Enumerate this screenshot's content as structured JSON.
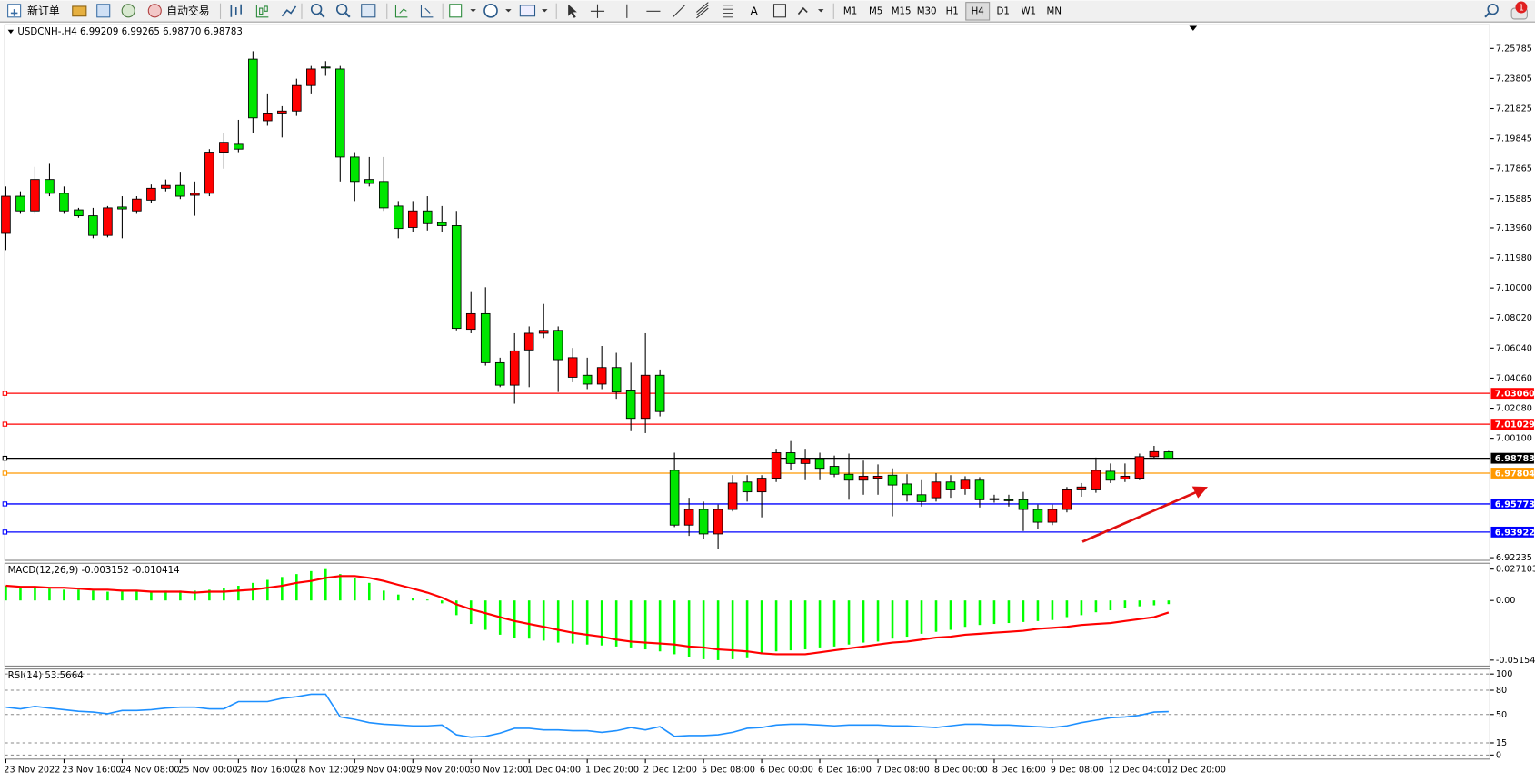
{
  "toolbar": {
    "buttons": [
      "新订单",
      "自动交易"
    ],
    "timeframes": [
      "M1",
      "M5",
      "M15",
      "M30",
      "H1",
      "H4",
      "D1",
      "W1",
      "MN"
    ],
    "text_tool": "A",
    "badge": "1"
  },
  "chart_data": [
    {
      "type": "candlestick",
      "title": "USDCNH-,H4  6.99209 6.99265 6.98770 6.98783",
      "categories": [
        "23 Nov 2022",
        null,
        null,
        null,
        "23 Nov 16:00",
        null,
        null,
        null,
        "24 Nov 08:00",
        null,
        null,
        null,
        "25 Nov 00:00",
        null,
        null,
        null,
        "25 Nov 16:00",
        null,
        null,
        null,
        "28 Nov 12:00",
        null,
        null,
        null,
        "29 Nov 04:00",
        null,
        null,
        null,
        "29 Nov 20:00",
        null,
        null,
        null,
        "30 Nov 12:00",
        null,
        null,
        null,
        "1 Dec 04:00",
        null,
        null,
        null,
        "1 Dec 20:00",
        null,
        null,
        null,
        "2 Dec 12:00",
        null,
        null,
        null,
        "5 Dec 08:00",
        null,
        null,
        null,
        "6 Dec 00:00",
        null,
        null,
        null,
        "6 Dec 16:00",
        null,
        null,
        null,
        "7 Dec 08:00",
        null,
        null,
        null,
        "8 Dec 00:00",
        null,
        null,
        null,
        "8 Dec 16:00",
        null,
        null,
        null,
        "9 Dec 08:00",
        null,
        null,
        null,
        "12 Dec 04:00",
        null,
        null,
        null,
        "12 Dec 20:00"
      ],
      "open": [
        7.136,
        7.1605,
        7.1508,
        7.1715,
        7.1624,
        7.1515,
        7.1476,
        7.1347,
        7.1534,
        7.1508,
        7.1579,
        7.1657,
        7.1676,
        7.1611,
        7.1624,
        7.1895,
        7.1947,
        7.2508,
        7.2102,
        7.2153,
        7.2166,
        7.2334,
        7.2456,
        7.2443,
        7.1863,
        7.1715,
        7.1702,
        7.154,
        7.1399,
        7.1508,
        7.1431,
        7.1411,
        7.0728,
        7.0831,
        7.0508,
        7.036,
        7.0592,
        7.0702,
        7.0721,
        7.0412,
        7.0425,
        7.0367,
        7.0476,
        7.0328,
        7.0141,
        7.0425,
        6.9799,
        6.9438,
        6.9541,
        6.938,
        6.9541,
        6.9722,
        6.9657,
        6.9747,
        6.9915,
        6.9844,
        6.9876,
        6.9825,
        6.9773,
        6.9734,
        6.9747,
        6.9767,
        6.9709,
        6.9638,
        6.9618,
        6.9722,
        6.9676,
        6.9734,
        6.9612,
        6.9605,
        6.9605,
        6.9541,
        6.9457,
        6.9541,
        6.967,
        6.967,
        6.9793,
        6.9741,
        6.9747,
        6.9889,
        6.99209
      ],
      "high": [
        7.1669,
        7.1637,
        7.1798,
        7.1818,
        7.1669,
        7.1528,
        7.1528,
        7.154,
        7.1605,
        7.1605,
        7.1682,
        7.1715,
        7.1766,
        7.1702,
        7.1915,
        7.2024,
        7.2108,
        7.256,
        7.2282,
        7.2198,
        7.2379,
        7.2463,
        7.2495,
        7.2463,
        7.1895,
        7.1863,
        7.1863,
        7.1573,
        7.1573,
        7.1605,
        7.154,
        7.1508,
        7.0979,
        7.1005,
        7.0541,
        7.0702,
        7.0747,
        7.0895,
        7.0747,
        7.0605,
        7.0541,
        7.0618,
        7.0573,
        7.0508,
        7.0702,
        7.0463,
        6.9915,
        6.9618,
        6.9593,
        6.9573,
        6.9767,
        6.9767,
        6.9767,
        6.9941,
        6.9992,
        6.9941,
        6.9915,
        6.9896,
        6.9909,
        6.9863,
        6.9838,
        6.9812,
        6.9773,
        6.9734,
        6.978,
        6.9767,
        6.976,
        6.9754,
        6.9638,
        6.9638,
        6.9657,
        6.9573,
        6.9573,
        6.9689,
        6.9715,
        6.9883,
        6.9844,
        6.9844,
        6.9909,
        6.996,
        6.99265
      ],
      "low": [
        7.125,
        7.1489,
        7.1489,
        7.1605,
        7.1489,
        7.1463,
        7.1328,
        7.1334,
        7.1328,
        7.1489,
        7.156,
        7.1637,
        7.1586,
        7.1476,
        7.1605,
        7.1786,
        7.1895,
        7.2024,
        7.2069,
        7.1992,
        7.2134,
        7.2282,
        7.2398,
        7.1702,
        7.1573,
        7.1669,
        7.1508,
        7.1328,
        7.1366,
        7.1379,
        7.1366,
        7.0721,
        7.0702,
        7.0489,
        7.0347,
        7.0238,
        7.0347,
        7.067,
        7.0315,
        7.0379,
        7.0334,
        7.0334,
        7.027,
        7.0057,
        7.0044,
        7.0154,
        6.9425,
        6.9367,
        6.9347,
        6.9283,
        6.9528,
        6.9593,
        6.9489,
        6.9722,
        6.9799,
        6.9734,
        6.9734,
        6.9754,
        6.9605,
        6.9638,
        6.9638,
        6.9496,
        6.9593,
        6.956,
        6.9593,
        6.9618,
        6.9638,
        6.9554,
        6.9586,
        6.956,
        6.9399,
        6.9412,
        6.9438,
        6.9522,
        6.9625,
        6.9651,
        6.9715,
        6.9722,
        6.9734,
        6.9876,
        6.9877
      ],
      "close": [
        7.1605,
        7.1508,
        7.1715,
        7.1624,
        7.1508,
        7.1476,
        7.1347,
        7.1528,
        7.1521,
        7.1586,
        7.1657,
        7.1676,
        7.1605,
        7.1624,
        7.1895,
        7.196,
        7.1915,
        7.2121,
        7.2153,
        7.2166,
        7.2334,
        7.2443,
        7.245,
        7.1863,
        7.1702,
        7.1689,
        7.1528,
        7.1392,
        7.1508,
        7.1424,
        7.1411,
        7.0734,
        7.0831,
        7.0508,
        7.036,
        7.0586,
        7.0702,
        7.0721,
        7.0528,
        7.0541,
        7.0367,
        7.0476,
        7.0315,
        7.0141,
        7.0425,
        7.0186,
        6.9438,
        6.9541,
        6.938,
        6.9541,
        6.9715,
        6.9657,
        6.9747,
        6.9915,
        6.9844,
        6.9876,
        6.9812,
        6.9773,
        6.9734,
        6.976,
        6.976,
        6.9702,
        6.9638,
        6.9593,
        6.9722,
        6.967,
        6.9734,
        6.9605,
        6.9605,
        6.9599,
        6.9541,
        6.9457,
        6.9541,
        6.967,
        6.9689,
        6.9799,
        6.9734,
        6.976,
        6.9889,
        6.9922,
        6.98783
      ],
      "up_color": "#ff0000",
      "down_color": "#00e600",
      "ylim": [
        6.9206,
        7.2727
      ],
      "yticks": [
        7.25785,
        7.23805,
        7.21825,
        7.19845,
        7.17865,
        7.15885,
        {
          "value": 7.1396,
          "label": "7.13960"
        },
        {
          "value": 7.1198,
          "label": "7.11980"
        },
        {
          "value": 7.1,
          "label": "7.10000"
        },
        {
          "value": 7.0802,
          "label": "7.08020"
        },
        {
          "value": 7.0604,
          "label": "7.06040"
        },
        {
          "value": 7.0406,
          "label": "7.04060"
        },
        {
          "value": 7.0208,
          "label": "7.02080"
        },
        {
          "value": 7.001,
          "label": "7.00100"
        },
        6.92235
      ],
      "levels": {
        "values": [
          7.0306,
          7.01029,
          6.98783,
          6.97804,
          6.95773,
          6.93922
        ],
        "value_labels": [
          "7.03060",
          "7.01029",
          "6.98783",
          "6.97804",
          "6.95773",
          "6.93922"
        ],
        "colors": [
          "#ff0000",
          "#ff0000",
          "#000000",
          "#ff9900",
          "#0000ff",
          "#0000ff"
        ]
      }
    },
    {
      "type": "macd",
      "title": "MACD(12,26,9) -0.003152 -0.010414",
      "series": [
        {
          "kind": "bar",
          "color": "#00ff00",
          "values": [
            0.0127,
            0.011,
            0.011,
            0.0102,
            0.0093,
            0.0093,
            0.0085,
            0.0076,
            0.0076,
            0.0076,
            0.0076,
            0.0085,
            0.0085,
            0.0085,
            0.0093,
            0.011,
            0.0127,
            0.0152,
            0.0178,
            0.0203,
            0.0228,
            0.0254,
            0.0271,
            0.0228,
            0.0195,
            0.0152,
            0.0085,
            0.0051,
            0.0025,
            0.0008,
            -0.0025,
            -0.0127,
            -0.0203,
            -0.0254,
            -0.0296,
            -0.0321,
            -0.033,
            -0.0347,
            -0.0364,
            -0.0372,
            -0.0381,
            -0.0389,
            -0.0398,
            -0.0406,
            -0.0423,
            -0.044,
            -0.0465,
            -0.0491,
            -0.0508,
            -0.0516,
            -0.0508,
            -0.0499,
            -0.0465,
            -0.044,
            -0.0431,
            -0.0423,
            -0.0406,
            -0.0398,
            -0.0381,
            -0.0364,
            -0.0355,
            -0.033,
            -0.0313,
            -0.0288,
            -0.0271,
            -0.0254,
            -0.0228,
            -0.0212,
            -0.0203,
            -0.0195,
            -0.0186,
            -0.0178,
            -0.0169,
            -0.0144,
            -0.0127,
            -0.0102,
            -0.0085,
            -0.0068,
            -0.0051,
            -0.0042,
            -0.003152
          ]
        },
        {
          "kind": "line",
          "color": "#ff0000",
          "values": [
            0.0127,
            0.0118,
            0.0118,
            0.011,
            0.011,
            0.0102,
            0.0093,
            0.0093,
            0.0085,
            0.0085,
            0.0076,
            0.0076,
            0.0076,
            0.0068,
            0.0076,
            0.0076,
            0.0085,
            0.0093,
            0.011,
            0.0127,
            0.0152,
            0.0169,
            0.0195,
            0.0211,
            0.0211,
            0.0195,
            0.0169,
            0.0135,
            0.0102,
            0.0068,
            0.0025,
            -0.0034,
            -0.0076,
            -0.011,
            -0.0144,
            -0.0178,
            -0.0203,
            -0.0228,
            -0.0254,
            -0.0279,
            -0.0296,
            -0.0313,
            -0.0338,
            -0.0355,
            -0.0364,
            -0.0372,
            -0.0381,
            -0.0398,
            -0.0406,
            -0.0423,
            -0.0431,
            -0.044,
            -0.0457,
            -0.0465,
            -0.0465,
            -0.0465,
            -0.0448,
            -0.0431,
            -0.0414,
            -0.0398,
            -0.0381,
            -0.0364,
            -0.0355,
            -0.0338,
            -0.0321,
            -0.0313,
            -0.0296,
            -0.0288,
            -0.0279,
            -0.0271,
            -0.0262,
            -0.0245,
            -0.0237,
            -0.0228,
            -0.0212,
            -0.0203,
            -0.0195,
            -0.0178,
            -0.0161,
            -0.0144,
            -0.010414
          ]
        }
      ],
      "ylim": [
        -0.0567,
        0.0313
      ],
      "yticks": [
        0.027103,
        {
          "value": 0,
          "label": "0.00"
        },
        -0.051546
      ]
    },
    {
      "type": "line",
      "title": "RSI(14) 53.5664",
      "color": "#1e90ff",
      "values": [
        59,
        57,
        60,
        58,
        56,
        54,
        53,
        51,
        55,
        55,
        56,
        58,
        59,
        59,
        57,
        57,
        66,
        66,
        66,
        70,
        72,
        75,
        75,
        47,
        44,
        40,
        38,
        37,
        36,
        36,
        37,
        25,
        22,
        23,
        27,
        33,
        33,
        31,
        31,
        30,
        30,
        28,
        30,
        34,
        31,
        35,
        23,
        24,
        24,
        25,
        28,
        33,
        34,
        37,
        38,
        38,
        37,
        36,
        37,
        37,
        37,
        36,
        36,
        35,
        34,
        36,
        38,
        38,
        37,
        37,
        36,
        35,
        34,
        36,
        40,
        43,
        46,
        47,
        49,
        53,
        53.5664
      ],
      "ylim": [
        -5,
        105
      ],
      "yticks": [
        100,
        80,
        50,
        15,
        0
      ],
      "grid": "dashed"
    }
  ]
}
